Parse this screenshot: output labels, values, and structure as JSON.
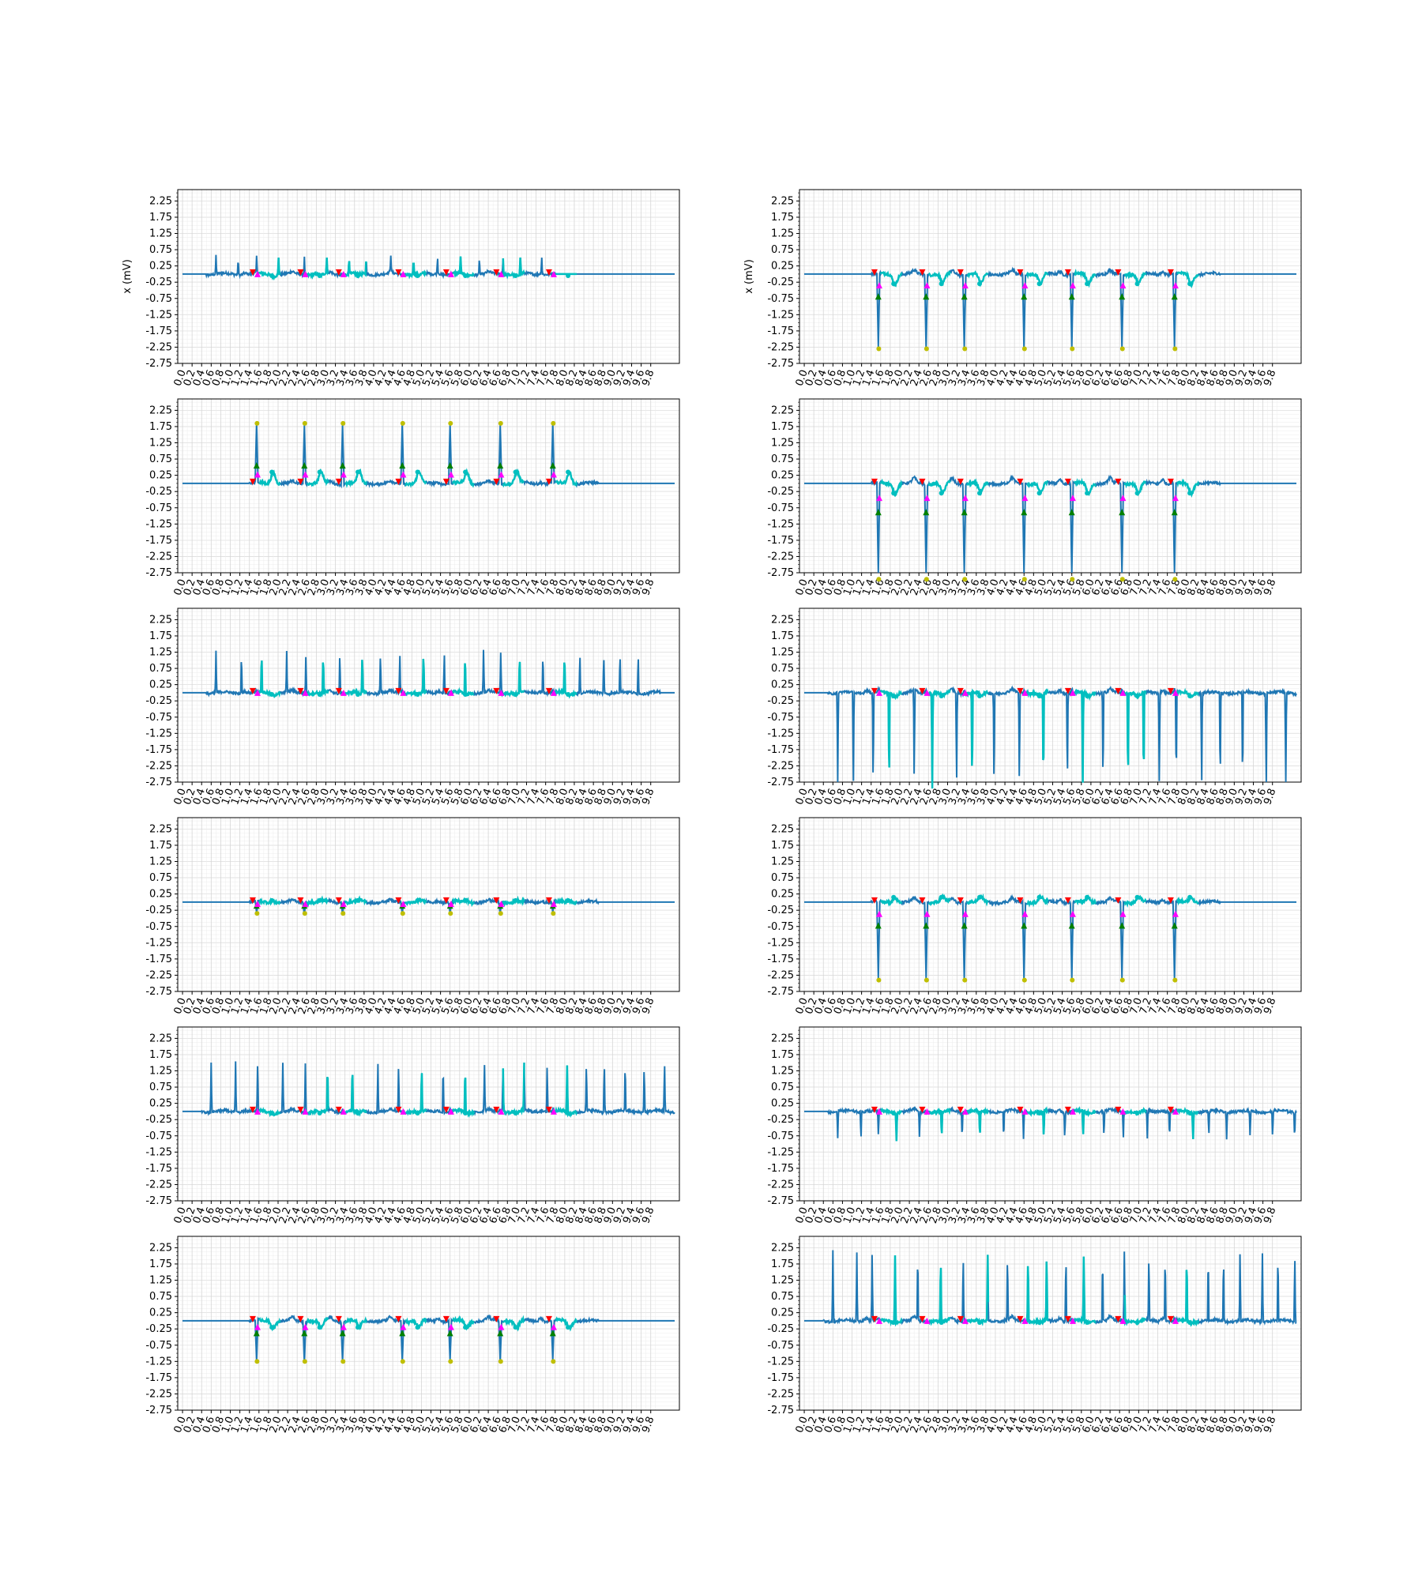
{
  "chart_data": {
    "type": "line",
    "layout": "6x2 grid of ECG lead panels",
    "ylabel": "x (mV)",
    "yticks": [
      "2.25",
      "1.75",
      "1.25",
      "0.75",
      "0.25",
      "-0.25",
      "-0.75",
      "-1.25",
      "-1.75",
      "-2.25",
      "-2.75"
    ],
    "xticks": [
      "0.0",
      "0.2",
      "0.4",
      "0.6",
      "0.8",
      "1.0",
      "1.2",
      "1.4",
      "1.6",
      "1.8",
      "2.0",
      "2.2",
      "2.4",
      "2.6",
      "2.8",
      "3.0",
      "3.2",
      "3.4",
      "3.6",
      "3.8",
      "4.0",
      "4.2",
      "4.4",
      "4.6",
      "4.8",
      "5.0",
      "5.2",
      "5.4",
      "5.6",
      "5.8",
      "6.0",
      "6.2",
      "6.4",
      "6.6",
      "6.8",
      "7.0",
      "7.2",
      "7.4",
      "7.6",
      "7.8",
      "8.0",
      "8.2",
      "8.4",
      "8.6",
      "8.8",
      "9.0",
      "9.2",
      "9.4",
      "9.6",
      "9.8"
    ],
    "ylim": [
      -2.75,
      2.6
    ],
    "xlim": [
      -0.1,
      10.4
    ],
    "grid": true,
    "line_color": "#1f77b4",
    "marker_colors": {
      "onset": "#ff0000",
      "peak_up": "#008000",
      "peak_down": "#ff00ff",
      "spike": "#bfbf00",
      "wave": "#00bfbf"
    },
    "beats_x": [
      1.55,
      2.55,
      3.35,
      4.6,
      5.6,
      6.65,
      7.75
    ],
    "panels": [
      {
        "id": "p00",
        "ylabel_shown": true,
        "qrs": 0.0,
        "spike": 0.08,
        "pwave": 0.05,
        "twave": -0.05,
        "active": [
          0.5,
          7.8
        ],
        "flat_extra": 10.3,
        "extra_spikes": 0.55,
        "extra_spikes_dir": 1
      },
      {
        "id": "p01",
        "ylabel_shown": true,
        "qrs": -2.3,
        "spike": 0.0,
        "pwave": 0.1,
        "twave": -0.3,
        "active": [
          1.4,
          8.7
        ],
        "flat_extra": 10.3,
        "extra_spikes": 0,
        "extra_spikes_dir": 1
      },
      {
        "id": "p10",
        "ylabel_shown": false,
        "qrs": 1.85,
        "spike": 0.0,
        "pwave": 0.05,
        "twave": 0.35,
        "active": [
          1.4,
          8.7
        ],
        "flat_extra": 10.3,
        "extra_spikes": 0,
        "extra_spikes_dir": 1
      },
      {
        "id": "p11",
        "ylabel_shown": false,
        "qrs": -2.95,
        "spike": 0.0,
        "pwave": 0.15,
        "twave": -0.3,
        "active": [
          1.4,
          8.7
        ],
        "flat_extra": 10.3,
        "extra_spikes": 0,
        "extra_spikes_dir": 1
      },
      {
        "id": "p20",
        "ylabel_shown": false,
        "qrs": 0.05,
        "spike": 0.0,
        "pwave": 0.05,
        "twave": -0.05,
        "active": [
          0.5,
          10.0
        ],
        "flat_extra": 10.3,
        "extra_spikes": 1.3,
        "extra_spikes_dir": 1
      },
      {
        "id": "p21",
        "ylabel_shown": false,
        "qrs": 0.1,
        "spike": 0.0,
        "pwave": 0.1,
        "twave": -0.1,
        "active": [
          0.5,
          10.3
        ],
        "flat_extra": 10.3,
        "extra_spikes": -3.0,
        "extra_spikes_dir": -1
      },
      {
        "id": "p30",
        "ylabel_shown": false,
        "qrs": -0.35,
        "spike": 0.0,
        "pwave": 0.05,
        "twave": 0.05,
        "active": [
          1.4,
          8.7
        ],
        "flat_extra": 10.3,
        "extra_spikes": 0,
        "extra_spikes_dir": 1
      },
      {
        "id": "p31",
        "ylabel_shown": false,
        "qrs": -2.4,
        "spike": 0.0,
        "pwave": 0.1,
        "twave": 0.15,
        "active": [
          1.4,
          8.7
        ],
        "flat_extra": 10.3,
        "extra_spikes": 0,
        "extra_spikes_dir": 1
      },
      {
        "id": "p40",
        "ylabel_shown": false,
        "qrs": 0.05,
        "spike": 0.0,
        "pwave": 0.05,
        "twave": -0.05,
        "active": [
          0.4,
          10.3
        ],
        "flat_extra": 10.3,
        "extra_spikes": 1.55,
        "extra_spikes_dir": 1
      },
      {
        "id": "p41",
        "ylabel_shown": false,
        "qrs": 0.0,
        "spike": 0.0,
        "pwave": 0.05,
        "twave": -0.05,
        "active": [
          0.5,
          10.3
        ],
        "flat_extra": 10.3,
        "extra_spikes": -0.85,
        "extra_spikes_dir": -1
      },
      {
        "id": "p50",
        "ylabel_shown": false,
        "qrs": -1.25,
        "spike": 0.0,
        "pwave": 0.1,
        "twave": -0.2,
        "active": [
          1.4,
          8.7
        ],
        "flat_extra": 10.3,
        "extra_spikes": 0,
        "extra_spikes_dir": 1
      },
      {
        "id": "p51",
        "ylabel_shown": false,
        "qrs": 0.05,
        "spike": 0.0,
        "pwave": 0.1,
        "twave": -0.05,
        "active": [
          0.4,
          10.3
        ],
        "flat_extra": 10.3,
        "extra_spikes": 2.2,
        "extra_spikes_dir": 1
      }
    ]
  }
}
